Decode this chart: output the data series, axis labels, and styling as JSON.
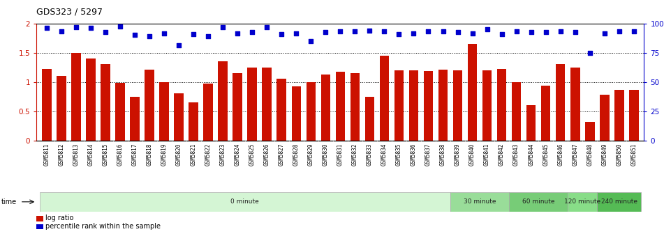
{
  "title": "GDS323 / 5297",
  "categories": [
    "GSM5811",
    "GSM5812",
    "GSM5813",
    "GSM5814",
    "GSM5815",
    "GSM5816",
    "GSM5817",
    "GSM5818",
    "GSM5819",
    "GSM5820",
    "GSM5821",
    "GSM5822",
    "GSM5823",
    "GSM5824",
    "GSM5825",
    "GSM5826",
    "GSM5827",
    "GSM5828",
    "GSM5829",
    "GSM5830",
    "GSM5831",
    "GSM5832",
    "GSM5833",
    "GSM5834",
    "GSM5835",
    "GSM5836",
    "GSM5837",
    "GSM5838",
    "GSM5839",
    "GSM5840",
    "GSM5841",
    "GSM5842",
    "GSM5843",
    "GSM5844",
    "GSM5845",
    "GSM5846",
    "GSM5847",
    "GSM5848",
    "GSM5849",
    "GSM5850",
    "GSM5851"
  ],
  "log_ratio": [
    1.22,
    1.1,
    1.49,
    1.4,
    1.31,
    0.98,
    0.75,
    1.21,
    1.0,
    0.8,
    0.65,
    0.97,
    1.35,
    1.15,
    1.25,
    1.25,
    1.05,
    0.92,
    1.0,
    1.13,
    1.17,
    1.15,
    0.75,
    1.45,
    1.2,
    1.2,
    1.18,
    1.21,
    1.2,
    1.65,
    1.2,
    1.22,
    1.0,
    0.6,
    0.94,
    1.3,
    1.24,
    0.32,
    0.78,
    0.87,
    0.87
  ],
  "percentile": [
    96,
    93.5,
    97,
    96,
    92.5,
    97.5,
    90,
    89,
    91.5,
    81.5,
    91,
    89,
    96.5,
    91.5,
    92.5,
    96.5,
    91,
    91.5,
    85,
    92.5,
    93.5,
    93.5,
    94,
    93.5,
    91,
    91.5,
    93.5,
    93.5,
    92.5,
    91.5,
    95,
    91,
    93.5,
    92.5,
    92.5,
    93.5,
    92.5,
    75,
    91.5,
    93.5,
    93.5
  ],
  "bar_color": "#cc1100",
  "dot_color": "#0000cc",
  "ylim_left": [
    0,
    2.0
  ],
  "ylim_right": [
    0,
    100
  ],
  "yticks_left": [
    0,
    0.5,
    1.0,
    1.5,
    2
  ],
  "yticks_left_labels": [
    "0",
    "0.5",
    "1",
    "1.5",
    "2"
  ],
  "yticks_right": [
    0,
    25,
    50,
    75,
    100
  ],
  "yticks_right_labels": [
    "0",
    "25",
    "50",
    "75",
    "100%"
  ],
  "time_groups": [
    {
      "label": "0 minute",
      "start": 0,
      "end": 28,
      "color": "#d4f5d4"
    },
    {
      "label": "30 minute",
      "start": 28,
      "end": 32,
      "color": "#99dd99"
    },
    {
      "label": "60 minute",
      "start": 32,
      "end": 36,
      "color": "#77cc77"
    },
    {
      "label": "120 minute",
      "start": 36,
      "end": 38,
      "color": "#88dd88"
    },
    {
      "label": "240 minute",
      "start": 38,
      "end": 41,
      "color": "#55bb55"
    }
  ],
  "legend_log_ratio_label": "log ratio",
  "legend_percentile_label": "percentile rank within the sample"
}
